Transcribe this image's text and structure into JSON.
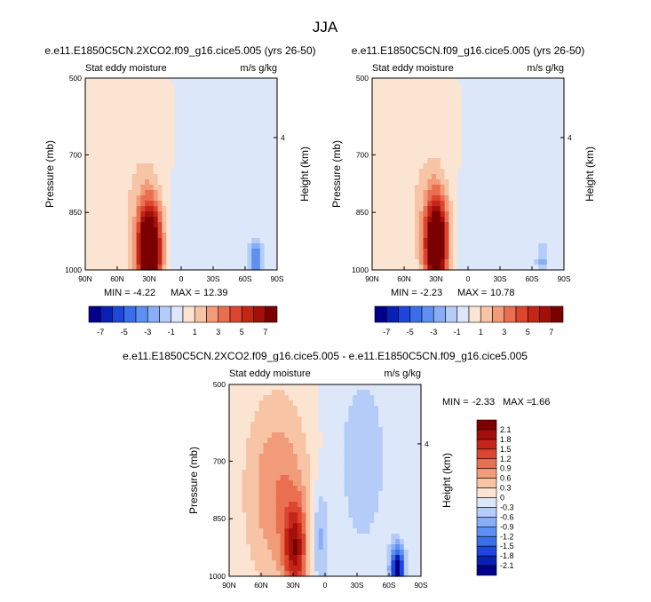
{
  "figure": {
    "title": "JJA"
  },
  "chart_data": [
    {
      "type": "heatmap",
      "title": "e.e11.E1850C5CN.2XCO2.f09_g16.cice5.005 (yrs 26-50)",
      "left_string": "Stat eddy moisture",
      "right_string": "m/s g/kg",
      "ylabel": "Pressure (mb)",
      "right_ylabel": "Height (km)",
      "x_ticks": [
        "90N",
        "60N",
        "30N",
        "0",
        "30S",
        "60S",
        "90S"
      ],
      "x_range": [
        90,
        -90
      ],
      "y_ticks": [
        500,
        700,
        850,
        1000
      ],
      "y_range": [
        500,
        1000
      ],
      "right_ticks": [
        "4"
      ],
      "min_label": "MIN = ",
      "min_value": "-4.22",
      "max_label": "MAX = ",
      "max_value": "12.39",
      "field": {
        "max_lat": 30,
        "max_p": 950,
        "max_value": 12.39,
        "min_lat": -70,
        "min_p": 980,
        "min_value": -4.22
      }
    },
    {
      "type": "heatmap",
      "title": "e.e11.E1850C5CN.f09_g16.cice5.005 (yrs 26-50)",
      "left_string": "Stat eddy moisture",
      "right_string": "m/s g/kg",
      "ylabel": "Pressure (mb)",
      "right_ylabel": "Height (km)",
      "x_ticks": [
        "90N",
        "60N",
        "30N",
        "0",
        "30S",
        "60S",
        "90S"
      ],
      "x_range": [
        90,
        -90
      ],
      "y_ticks": [
        500,
        700,
        850,
        1000
      ],
      "y_range": [
        500,
        1000
      ],
      "right_ticks": [
        "4"
      ],
      "min_label": "MIN = ",
      "min_value": "-2.23",
      "max_label": "MAX = ",
      "max_value": "10.78",
      "field": {
        "max_lat": 30,
        "max_p": 930,
        "max_value": 10.78,
        "min_lat": -70,
        "min_p": 980,
        "min_value": -2.23
      }
    },
    {
      "type": "heatmap",
      "title": "e.e11.E1850C5CN.2XCO2.f09_g16.cice5.005 - e.e11.E1850C5CN.f09_g16.cice5.005",
      "left_string": "Stat eddy moisture",
      "right_string": "m/s g/kg",
      "ylabel": "Pressure (mb)",
      "right_ylabel": "Height (km)",
      "x_ticks": [
        "90N",
        "60N",
        "30N",
        "0",
        "30S",
        "60S",
        "90S"
      ],
      "x_range": [
        90,
        -90
      ],
      "y_ticks": [
        500,
        700,
        850,
        1000
      ],
      "y_range": [
        500,
        1000
      ],
      "right_ticks": [
        "4"
      ],
      "min_label": "MIN = ",
      "min_value": "-2.33",
      "max_label": "MAX = ",
      "max_value": "1.66",
      "field": {
        "max_lat": 28,
        "max_p": 930,
        "max_value": 1.66,
        "min_lat": -68,
        "min_p": 980,
        "min_value": -2.33
      }
    }
  ],
  "colorbars": {
    "top": {
      "orientation": "horizontal",
      "levels": [
        -7,
        -6,
        -5,
        -4,
        -3,
        -2,
        -1,
        0,
        1,
        2,
        3,
        4,
        5,
        6,
        7
      ],
      "labels": [
        "-7",
        "-5",
        "-3",
        "-1",
        "1",
        "3",
        "5",
        "7"
      ]
    },
    "difference": {
      "orientation": "vertical",
      "levels": [
        2.1,
        1.8,
        1.5,
        1.2,
        0.9,
        0.6,
        0.3,
        0,
        -0.3,
        -0.6,
        -0.9,
        -1.2,
        -1.5,
        -1.8,
        -2.1
      ],
      "labels": [
        "2.1",
        "1.8",
        "1.5",
        "1.2",
        "0.9",
        "0.6",
        "0.3",
        "0",
        "-0.3",
        "-0.6",
        "-0.9",
        "-1.2",
        "-1.5",
        "-1.8",
        "-2.1"
      ]
    }
  },
  "palette": [
    "#00008b",
    "#0a1fb4",
    "#1e46dc",
    "#3b6fea",
    "#5e8ff2",
    "#88aef6",
    "#b5ccf8",
    "#dce8fa",
    "#fbe4d2",
    "#f8c4a6",
    "#f29b79",
    "#ea6f50",
    "#dc4530",
    "#c32517",
    "#a3100b",
    "#7b0000"
  ]
}
